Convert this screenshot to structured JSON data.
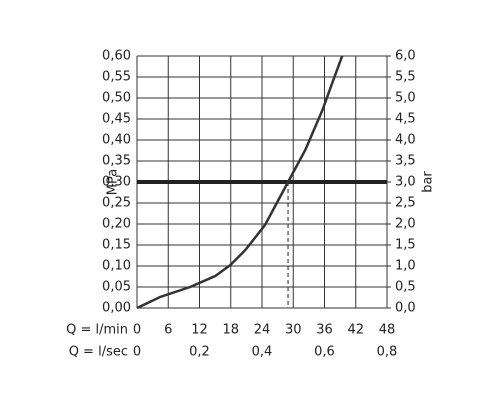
{
  "chart_data": {
    "type": "line",
    "x_label": "Q = l/min",
    "x2_label": "Q = l/sec",
    "y_label": "MPa",
    "y2_label": "bar",
    "x": [
      0,
      4.4,
      10.2,
      15,
      17.9,
      20.8,
      24.6,
      29,
      32.3,
      35.6,
      37.7,
      39.4
    ],
    "series": [
      {
        "color": "#333333",
        "values": [
          0,
          0.026,
          0.05,
          0.076,
          0.102,
          0.138,
          0.198,
          0.3,
          0.376,
          0.471,
          0.543,
          0.6
        ]
      }
    ],
    "xlim": [
      0,
      48
    ],
    "xticks": [
      0,
      6,
      12,
      18,
      24,
      30,
      36,
      42,
      48
    ],
    "x2lim": [
      0,
      0.8
    ],
    "x2ticks": [
      0,
      {
        "value": 0.2,
        "label": "0,2"
      },
      {
        "value": 0.4,
        "label": "0,4"
      },
      {
        "value": 0.6,
        "label": "0,6"
      },
      {
        "value": 0.8,
        "label": "0,8"
      }
    ],
    "ylim": [
      0,
      0.6
    ],
    "yticks": [
      {
        "value": 0,
        "label": "0,00"
      },
      {
        "value": 0.05,
        "label": "0,05"
      },
      {
        "value": 0.1,
        "label": "0,10"
      },
      {
        "value": 0.15,
        "label": "0,15"
      },
      {
        "value": 0.2,
        "label": "0,20"
      },
      {
        "value": 0.25,
        "label": "0,25"
      },
      {
        "value": 0.3,
        "label": "0,30"
      },
      {
        "value": 0.35,
        "label": "0,35"
      },
      {
        "value": 0.4,
        "label": "0,40"
      },
      {
        "value": 0.45,
        "label": "0,45"
      },
      {
        "value": 0.5,
        "label": "0,50"
      },
      {
        "value": 0.55,
        "label": "0,55"
      },
      {
        "value": 0.6,
        "label": "0,60"
      }
    ],
    "y2lim": [
      0,
      6
    ],
    "y2ticks": [
      {
        "value": 0,
        "label": "0,0"
      },
      {
        "value": 0.5,
        "label": "0,5"
      },
      {
        "value": 1,
        "label": "1,0"
      },
      {
        "value": 1.5,
        "label": "1,5"
      },
      {
        "value": 2,
        "label": "2,0"
      },
      {
        "value": 2.5,
        "label": "2,5"
      },
      {
        "value": 3,
        "label": "3,0"
      },
      {
        "value": 3.5,
        "label": "3,5"
      },
      {
        "value": 4,
        "label": "4,0"
      },
      {
        "value": 4.5,
        "label": "4,5"
      },
      {
        "value": 5,
        "label": "5,0"
      },
      {
        "value": 5.5,
        "label": "5,5"
      },
      {
        "value": 6,
        "label": "6,0"
      }
    ],
    "grid": true,
    "hline": {
      "value": 0.3,
      "color": "#222222"
    },
    "vline": 29
  }
}
